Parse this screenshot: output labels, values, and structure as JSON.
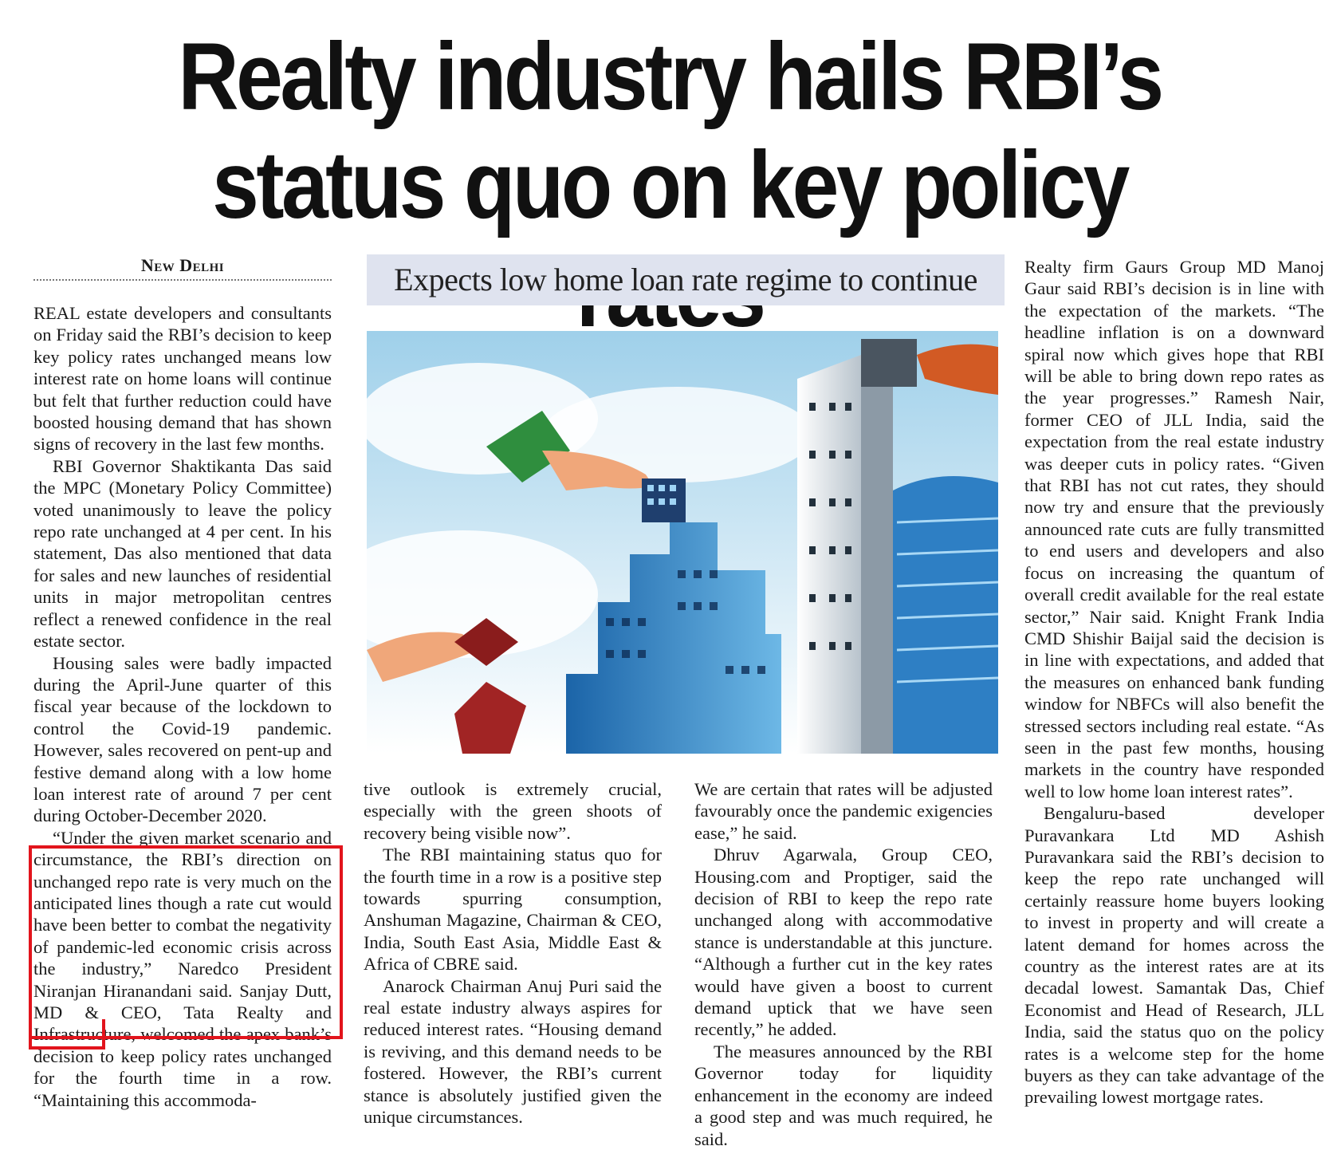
{
  "headline": {
    "line1": "Realty industry hails RBI’s",
    "line2": "status quo on key policy rates"
  },
  "dateline": "New Delhi",
  "subhead": "Expects low home loan rate regime to continue",
  "illustration": {
    "icon": "skyscrapers-with-hands-placing-blocks"
  },
  "colors": {
    "highlight": "#e2141c",
    "subhead_bg": "#dfe3ef"
  },
  "columns": {
    "col1": [
      "REAL estate developers and consultants on Friday said the RBI’s decision to keep key policy rates unchanged means low interest rate on home loans will continue but felt that further reduction could have boosted housing demand that has shown signs of recovery in the last few months.",
      "RBI Governor Shaktikanta Das said the MPC (Monetary Policy Committee) voted unanimously to leave the policy repo rate unchanged at 4 per cent. In his statement, Das also mentioned that data for sales and new launches of residential units in major metropolitan centres reflect a renewed confidence in the real estate sector.",
      "Housing sales were badly impacted during the April-June quarter of this fiscal year because of the lockdown to control the Covid-19 pandemic. However, sales recovered on pent-up and festive demand along with a low home loan interest rate of around 7 per cent during October-December 2020.",
      "“Under the given market scenario and circumstance, the RBI’s direction on unchanged repo rate is very much on the anticipated lines though a rate cut would have been better to combat the negativity of pandemic-led economic crisis across the industry,” Naredco President Niranjan Hiranandani said. Sanjay Dutt, MD & CEO, Tata Realty and Infrastructure, welcomed the apex bank’s decision to keep policy rates unchanged for the fourth time in a row. “Maintaining this accommoda-"
    ],
    "col2": [
      "tive outlook is extremely crucial, especially with the green shoots of recovery being visible now”.",
      "The RBI maintaining status quo for the fourth time in a row is a positive step towards spurring consumption, Anshuman Magazine, Chairman & CEO, India, South East Asia, Middle East & Africa of CBRE said.",
      "Anarock Chairman Anuj Puri said the real estate industry always aspires for reduced interest rates. “Housing demand is reviving, and this demand needs to be fostered. However, the RBI’s current stance is absolutely justified given the unique circumstances."
    ],
    "col3": [
      "We are certain that rates will be adjusted favourably once the pandemic exigencies ease,” he said.",
      "Dhruv Agarwala, Group CEO, Housing.com and Proptiger, said the decision of RBI to keep the repo rate unchanged along with accommodative stance is understandable at this juncture. “Although a further cut in the key rates would have given a boost to current demand uptick that we have seen recently,” he added.",
      "The measures announced by the RBI Governor today for liquidity enhancement in the economy are indeed a good step and was much required, he said."
    ],
    "col4": [
      "Realty firm Gaurs Group MD Manoj Gaur said RBI’s decision is in line with the expectation of the markets. “The headline inflation is on a downward spiral now which gives hope that RBI will be able to bring down repo rates as the year progresses.” Ramesh Nair, former CEO of JLL India, said the expectation from the real estate industry was deeper cuts in policy rates. “Given that RBI has not cut rates, they should now try and ensure that the previously announced rate cuts are fully transmitted to end users and developers and also focus on increasing the quantum of overall credit available for the real estate sector,” Nair said. Knight Frank India CMD Shishir Baijal said the decision is in line with expectations, and added that the measures on enhanced bank funding window for NBFCs will also benefit the stressed sectors including real estate. “As seen in the past few months, housing markets in the country have responded well to low home loan interest rates”.",
      "Bengaluru-based developer Puravankara Ltd MD Ashish Puravankara said the RBI’s decision to keep the repo rate unchanged will certainly reassure home buyers looking to invest in property and will create a latent demand for homes across the country as the interest rates are at its decadal lowest. Samantak Das, Chief Economist and Head of Research, JLL India, said the status quo on the policy rates is a welcome step for the home buyers as they can take advantage of the prevailing lowest mortgage rates."
    ]
  }
}
